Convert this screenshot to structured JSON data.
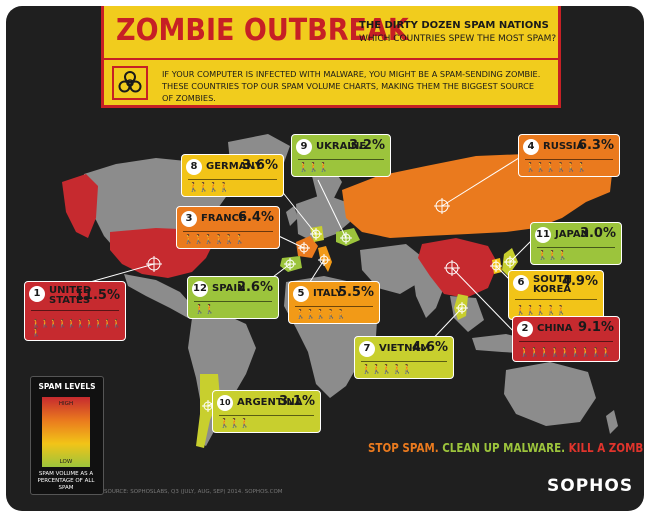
{
  "header": {
    "title": "ZOMBIE OUTBREAK",
    "subtitle": "THE DIRTY DOZEN SPAM NATIONS",
    "question": "WHICH COUNTRIES SPEW THE MOST SPAM?",
    "intro": "IF YOUR COMPUTER IS INFECTED WITH MALWARE, YOU MIGHT BE A SPAM-SENDING ZOMBIE. THESE COUNTRIES TOP OUR SPAM VOLUME CHARTS, MAKING THEM THE BIGGEST SOURCE OF ZOMBIES."
  },
  "countries": [
    {
      "rank": "1",
      "name": "UNITED STATES",
      "name_line1": "UNITED",
      "name_line2": "STATES",
      "percent": "11.5%",
      "value": 11.5
    },
    {
      "rank": "2",
      "name": "CHINA",
      "percent": "9.1%",
      "value": 9.1
    },
    {
      "rank": "3",
      "name": "FRANCE",
      "percent": "6.4%",
      "value": 6.4
    },
    {
      "rank": "4",
      "name": "RUSSIA",
      "percent": "6.3%",
      "value": 6.3
    },
    {
      "rank": "5",
      "name": "ITALY",
      "percent": "5.5%",
      "value": 5.5
    },
    {
      "rank": "6",
      "name": "SOUTH KOREA",
      "name_line1": "SOUTH",
      "name_line2": "KOREA",
      "percent": "4.9%",
      "value": 4.9
    },
    {
      "rank": "7",
      "name": "VIETNAM",
      "percent": "4.6%",
      "value": 4.6
    },
    {
      "rank": "8",
      "name": "GERMANY",
      "percent": "3.6%",
      "value": 3.6
    },
    {
      "rank": "9",
      "name": "UKRAINE",
      "percent": "3.2%",
      "value": 3.2
    },
    {
      "rank": "10",
      "name": "ARGENTINA",
      "percent": "3.1%",
      "value": 3.1
    },
    {
      "rank": "11",
      "name": "JAPAN",
      "percent": "3.0%",
      "value": 3.0
    },
    {
      "rank": "12",
      "name": "SPAIN",
      "percent": "2.6%",
      "value": 2.6
    }
  ],
  "legend": {
    "title": "SPAM LEVELS",
    "high": "HIGH",
    "low": "LOW",
    "description": "SPAM VOLUME AS A PERCENTAGE OF ALL SPAM"
  },
  "source": "SOURCE: SOPHOSLABS, Q3 (JULY, AUG, SEP) 2014. SOPHOS.COM",
  "slogan": {
    "part1": "STOP SPAM.",
    "part2": "CLEAN UP MALWARE.",
    "part3": "KILL A ZOMBIE."
  },
  "logo": "SOPHOS",
  "colors": {
    "background": "#1f1f1f",
    "land": "#8c8c8c",
    "header_yellow": "#f1cc1d",
    "brand_red": "#c62025",
    "high": "#c62a2f",
    "mid_high": "#ea7a1e",
    "mid": "#f2c418",
    "low": "#9cc43c"
  }
}
